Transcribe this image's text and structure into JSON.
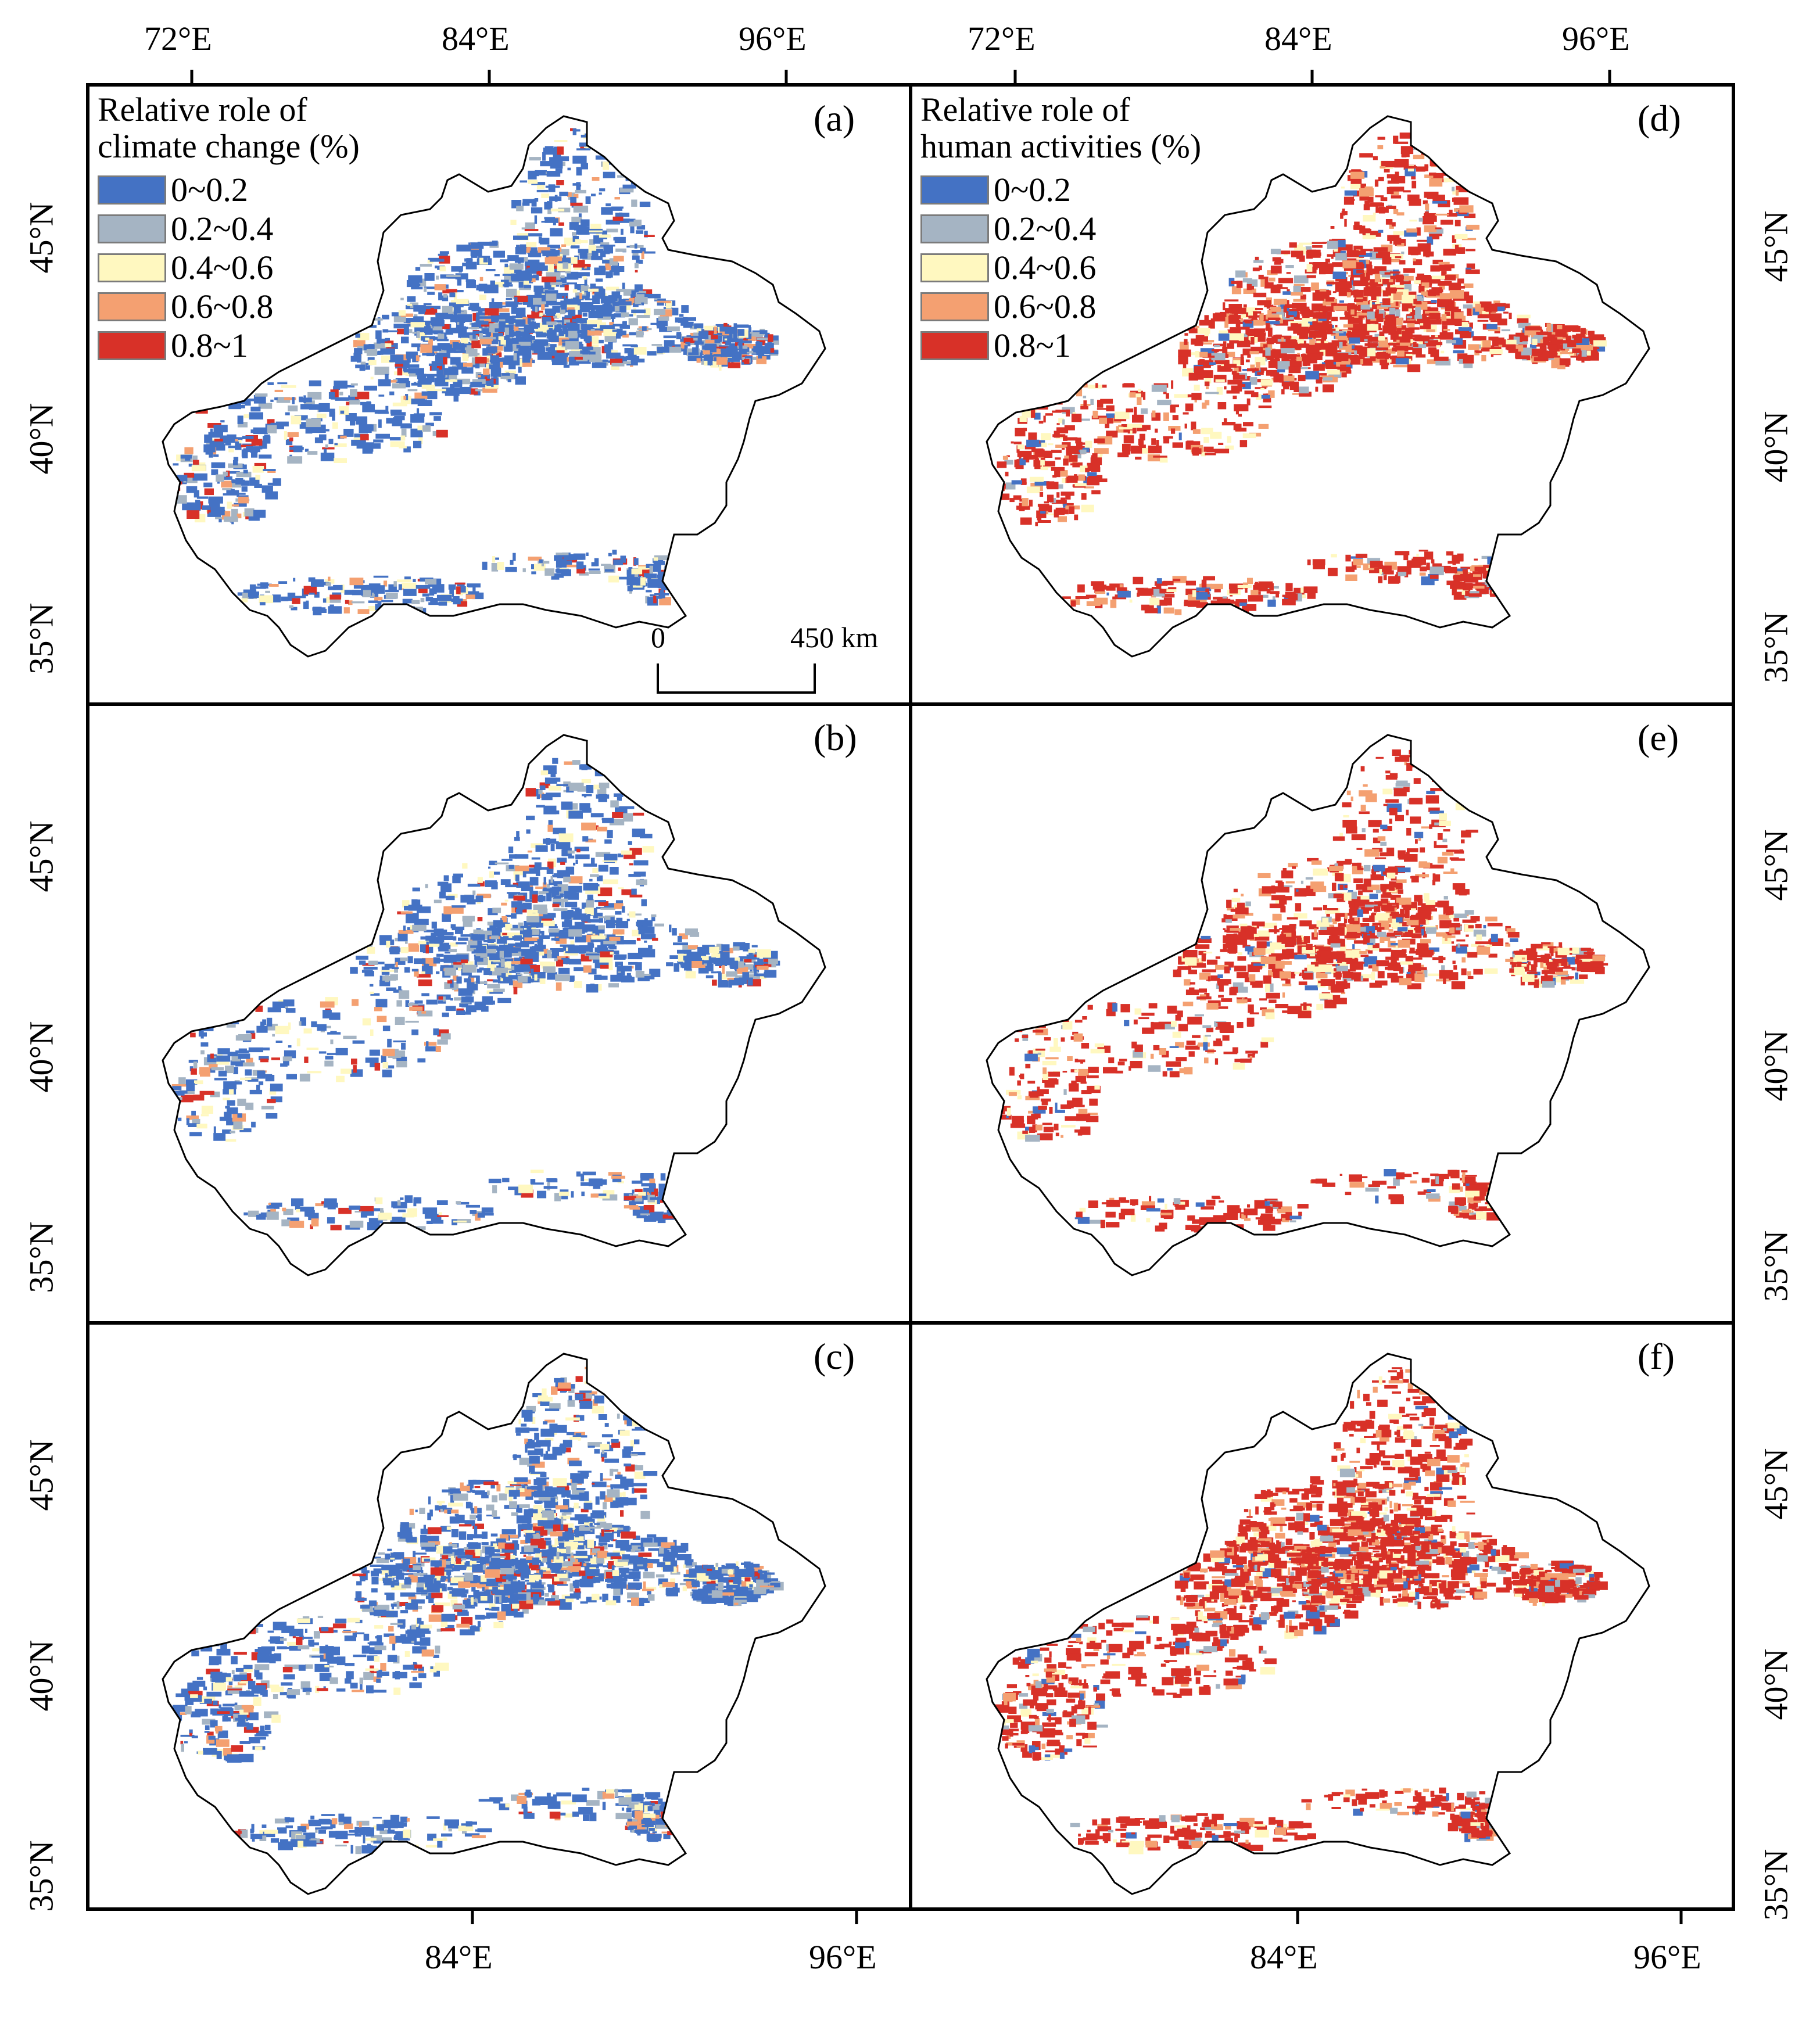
{
  "figure": {
    "top_lon_ticks": [
      "72°E",
      "84°E",
      "96°E"
    ],
    "bottom_lon_ticks": [
      "84°E",
      "96°E"
    ],
    "lat_ticks": [
      "45°N",
      "40°N",
      "35°N"
    ],
    "panels": [
      {
        "letter": "(a)",
        "legend_type": "climate",
        "dominant": "blue"
      },
      {
        "letter": "(b)",
        "legend_type": "none",
        "dominant": "blue"
      },
      {
        "letter": "(c)",
        "legend_type": "none",
        "dominant": "blue"
      },
      {
        "letter": "(d)",
        "legend_type": "human",
        "dominant": "red"
      },
      {
        "letter": "(e)",
        "legend_type": "none",
        "dominant": "red"
      },
      {
        "letter": "(f)",
        "legend_type": "none",
        "dominant": "red"
      }
    ]
  },
  "legend_climate": {
    "title_line1": "Relative role of",
    "title_line2": "climate change (%)"
  },
  "legend_human": {
    "title_line1": "Relative role of",
    "title_line2": "human activities (%)"
  },
  "legend_classes": [
    {
      "label": "0~0.2",
      "color": "#4472c4"
    },
    {
      "label": "0.2~0.4",
      "color": "#a5b4c3"
    },
    {
      "label": "0.4~0.6",
      "color": "#fff8c0"
    },
    {
      "label": "0.6~0.8",
      "color": "#f4a071"
    },
    {
      "label": "0.8~1",
      "color": "#d83128"
    }
  ],
  "scale_bar": {
    "start": "0",
    "end": "450 km"
  }
}
